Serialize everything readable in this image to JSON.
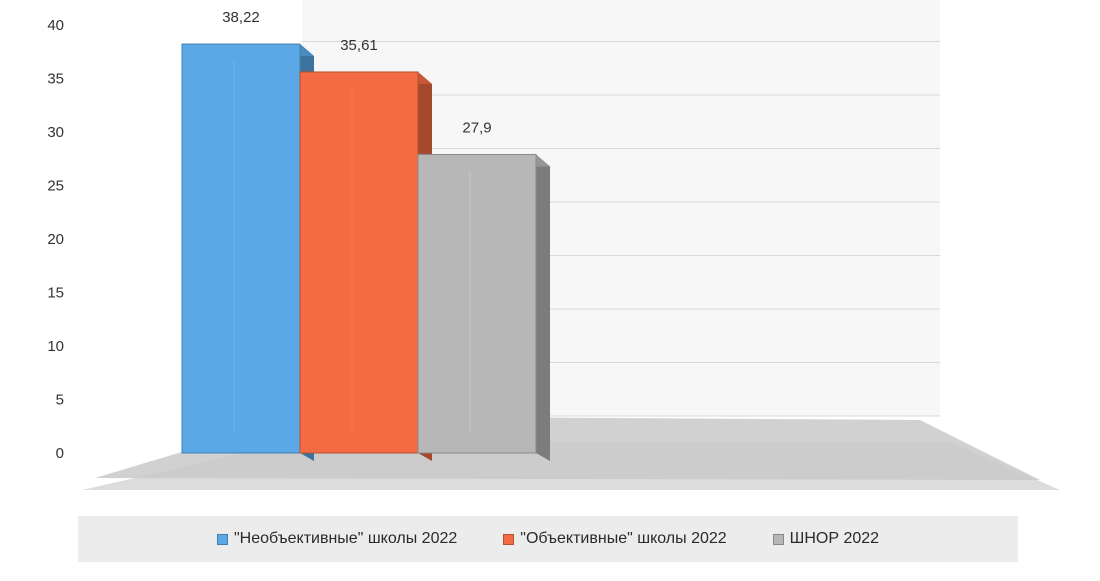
{
  "chart_data": {
    "type": "bar",
    "categories": [
      ""
    ],
    "series": [
      {
        "name": "\"Необъективные\" школы 2022",
        "values": [
          38.22
        ],
        "label": "38,22",
        "color": "#5aa9e6"
      },
      {
        "name": "\"Объективные\" школы 2022",
        "values": [
          35.61
        ],
        "label": "35,61",
        "color": "#f26b43"
      },
      {
        "name": "ШНОР 2022",
        "values": [
          27.9
        ],
        "label": "27,9",
        "color": "#b7b7b7"
      }
    ],
    "title": "",
    "xlabel": "",
    "ylabel": "",
    "ylim": [
      0,
      40
    ],
    "yticks": [
      "0",
      "5",
      "10",
      "15",
      "20",
      "25",
      "30",
      "35",
      "40"
    ],
    "grid": true,
    "legend_position": "bottom",
    "style": "3d-clustered-column"
  }
}
